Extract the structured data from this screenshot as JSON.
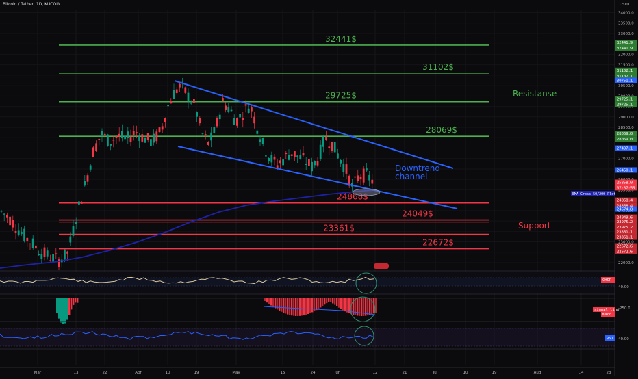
{
  "header": {
    "title": "Bitcoin / Tether, 1D, KUCOIN",
    "currency": "USDT"
  },
  "chart_data": {
    "type": "candlestick",
    "price_axis": {
      "range": [
        21800,
        34200
      ],
      "ticks": [
        "34000.0",
        "33500.0",
        "33000.0",
        "32500.0",
        "32000.0",
        "31500.0",
        "31000.0",
        "30500.0",
        "30000.0",
        "29500.0",
        "29000.0",
        "28500.0",
        "28000.0",
        "27500.0",
        "27000.0",
        "26500.0",
        "26000.0",
        "25500.0",
        "25000.0",
        "24500.0",
        "24000.0",
        "23500.0",
        "23000.0",
        "22500.0",
        "22000.0"
      ]
    },
    "time_axis": {
      "ticks": [
        "Mar",
        "13",
        "22",
        "Apr",
        "10",
        "19",
        "May",
        "15",
        "24",
        "Jun",
        "12",
        "21",
        "Jul",
        "10",
        "19",
        "Aug",
        "14",
        "23"
      ]
    },
    "resistance": [
      {
        "price": 32441,
        "label": "32441$",
        "tags": [
          "32441.9",
          "32441.9"
        ]
      },
      {
        "price": 31102,
        "label": "31102$",
        "tags": [
          "31102.1",
          "31102.1"
        ]
      },
      {
        "price": 29725,
        "label": "29725$",
        "tags": [
          "29725.1",
          "29725.1"
        ]
      },
      {
        "price": 28069,
        "label": "28069$",
        "tags": [
          "28069.0",
          "28069.0"
        ]
      }
    ],
    "support": [
      {
        "price": 24868,
        "label": "24868$",
        "tags": [
          "24868.4",
          "24868.4"
        ]
      },
      {
        "price": 24049,
        "label": "24049$",
        "tags": [
          "24049.6",
          "24049.6"
        ]
      },
      {
        "price": 23361,
        "label": "23361$",
        "tags": [
          "23361.1",
          "23361.1"
        ]
      },
      {
        "price": 22672,
        "label": "22672$",
        "tags": [
          "22672.6",
          "22672.6"
        ]
      }
    ],
    "support_extra_tags": [
      "23975.2",
      "23975.2"
    ],
    "other_tags": [
      {
        "price": 30751.1,
        "text": "30751.1",
        "color": "#2962ff"
      },
      {
        "price": 27497.1,
        "text": "27497.1",
        "color": "#2962ff"
      },
      {
        "price": 26450.1,
        "text": "26450.1",
        "color": "#2962ff"
      },
      {
        "price": 25858.0,
        "text": "25858.0",
        "color": "#f23645"
      },
      {
        "price": 25600.0,
        "text": "07:37:55",
        "color": "#f23645"
      },
      {
        "price": 24574.8,
        "text": "24574.8",
        "color": "#2962ff"
      }
    ],
    "annotations": {
      "resistance": "Resistanse",
      "support": "Support",
      "downtrend_line1": "Downtrend",
      "downtrend_line2": "channel",
      "ema_label": "EMA Cross 50/200 Plot"
    },
    "candles": [],
    "ema": []
  },
  "indicators": {
    "chop": {
      "label": "CHOP",
      "tick": "40.00"
    },
    "macd": {
      "ticks": [
        "-250.0"
      ],
      "labels": [
        "signal line",
        "macd"
      ]
    },
    "rsi": {
      "label": "RSI",
      "tick": "40.00"
    }
  },
  "colors": {
    "up": "#089981",
    "down": "#f23645",
    "resistance": "#4caf50",
    "support": "#f23645",
    "channel": "#2962ff",
    "ema": "#1e22aa"
  }
}
